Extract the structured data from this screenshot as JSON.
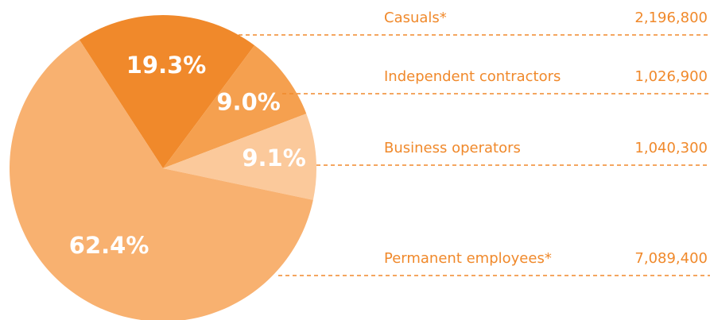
{
  "chart_data": {
    "type": "pie",
    "categories": [
      "Casuals*",
      "Independent contractors",
      "Business operators",
      "Permanent employees*"
    ],
    "values": [
      19.3,
      9.0,
      9.1,
      62.4
    ],
    "value_labels": [
      "19.3%",
      "9.0%",
      "9.1%",
      "62.4%"
    ],
    "colors": [
      "#f0892b",
      "#f5a04f",
      "#fbc99b",
      "#f8b170"
    ],
    "amounts": [
      {
        "value": 2196800,
        "label": "2,196,800"
      },
      {
        "value": 1026900,
        "label": "1,026,900"
      },
      {
        "value": 1040300,
        "label": "1,040,300"
      },
      {
        "value": 7089400,
        "label": "7,089,400"
      }
    ]
  }
}
